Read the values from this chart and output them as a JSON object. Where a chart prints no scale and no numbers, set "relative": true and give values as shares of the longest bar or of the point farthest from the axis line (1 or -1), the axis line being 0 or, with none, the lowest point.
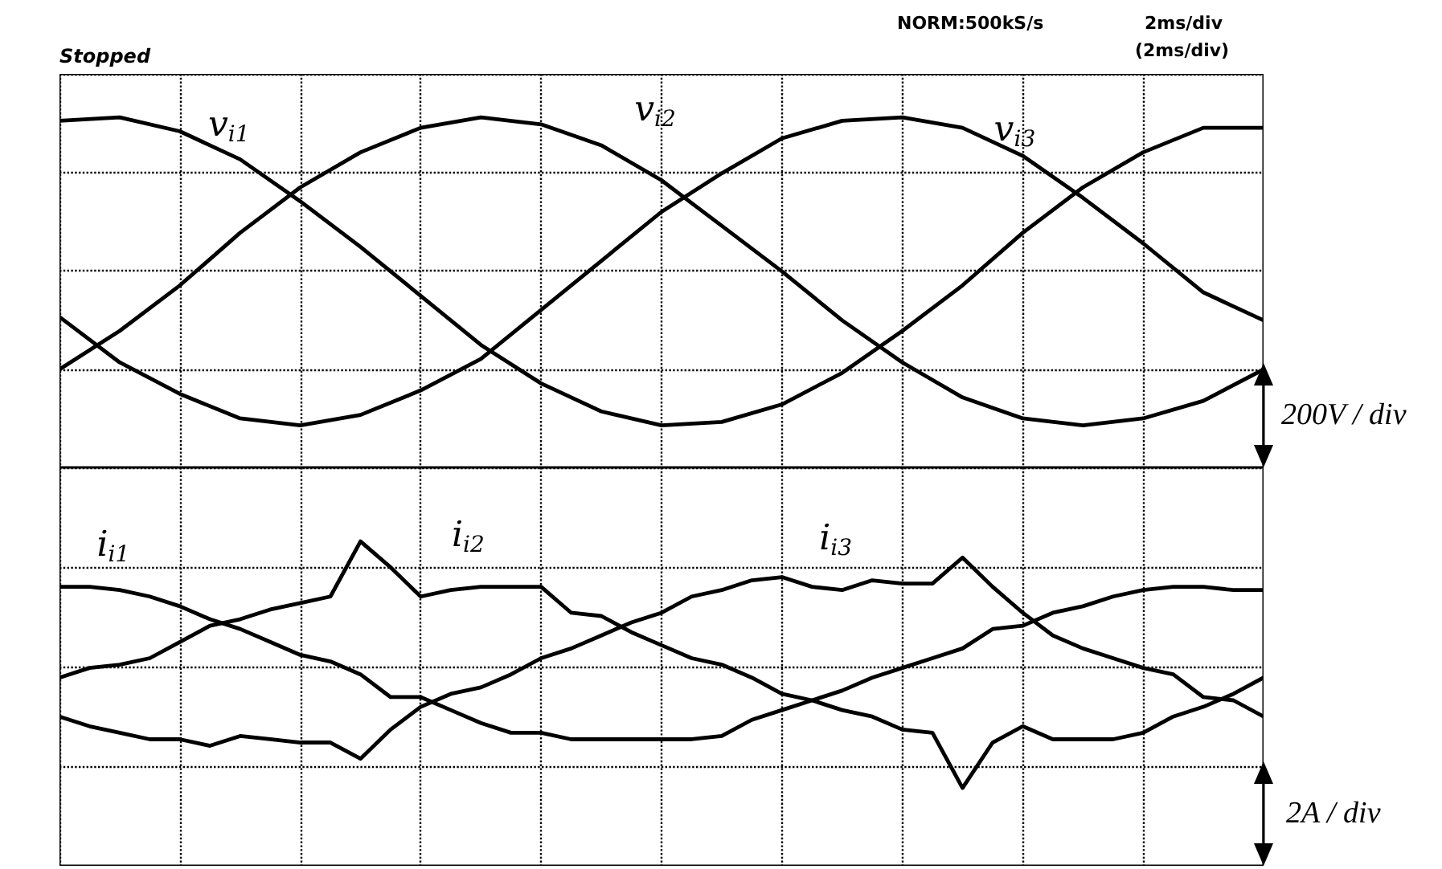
{
  "chart_data": [
    {
      "type": "line",
      "relative": true,
      "grid": true,
      "categories": [
        null,
        null,
        null,
        null,
        null,
        null,
        null,
        null,
        null,
        null,
        null,
        null,
        null,
        null,
        null,
        null,
        null,
        null,
        null,
        null,
        null
      ],
      "series": [
        {
          "name": "v$_{i1}$",
          "color": "#000000",
          "values": [
            0.99,
            1.0,
            0.96,
            0.88,
            0.76,
            0.63,
            0.49,
            0.35,
            0.24,
            0.16,
            0.12,
            0.13,
            0.18,
            0.27,
            0.39,
            0.52,
            0.67,
            0.8,
            0.9,
            0.97,
            0.97
          ]
        },
        {
          "name": "v$_{i2}$",
          "color": "#000000",
          "values": [
            0.28,
            0.39,
            0.52,
            0.67,
            0.8,
            0.9,
            0.97,
            1.0,
            0.98,
            0.92,
            0.82,
            0.69,
            0.56,
            0.42,
            0.3,
            0.2,
            0.14,
            0.12,
            0.14,
            0.19,
            0.28
          ]
        },
        {
          "name": "v$_{i3}$",
          "color": "#000000",
          "values": [
            0.43,
            0.3,
            0.21,
            0.14,
            0.12,
            0.15,
            0.22,
            0.31,
            0.45,
            0.59,
            0.73,
            0.84,
            0.94,
            0.99,
            1.0,
            0.97,
            0.89,
            0.77,
            0.64,
            0.5,
            0.42
          ]
        }
      ],
      "annotations": [
        "Stopped",
        "NORM:500kS/s",
        "2ms/div",
        "(2ms/div)",
        "200V / div"
      ]
    },
    {
      "type": "line",
      "relative": true,
      "grid": true,
      "categories": [
        null,
        null,
        null,
        null,
        null,
        null,
        null,
        null,
        null,
        null,
        null,
        null,
        null,
        null,
        null,
        null,
        null,
        null,
        null,
        null,
        null,
        null,
        null,
        null,
        null,
        null,
        null,
        null,
        null,
        null,
        null,
        null,
        null,
        null,
        null,
        null,
        null,
        null,
        null,
        null,
        null
      ],
      "series": [
        {
          "name": "i$_{i1}$",
          "color": "#000000",
          "values": [
            0.86,
            0.86,
            0.85,
            0.83,
            0.8,
            0.76,
            0.73,
            0.69,
            0.65,
            0.63,
            0.59,
            0.52,
            0.52,
            0.48,
            0.44,
            0.41,
            0.41,
            0.39,
            0.39,
            0.39,
            0.39,
            0.39,
            0.4,
            0.45,
            0.48,
            0.51,
            0.54,
            0.58,
            0.61,
            0.64,
            0.67,
            0.73,
            0.74,
            0.78,
            0.8,
            0.83,
            0.85,
            0.86,
            0.86,
            0.85,
            0.85
          ]
        },
        {
          "name": "i$_{i2}$",
          "color": "#000000",
          "values": [
            0.58,
            0.61,
            0.62,
            0.64,
            0.69,
            0.74,
            0.76,
            0.79,
            0.81,
            0.83,
            1.0,
            0.92,
            0.83,
            0.85,
            0.86,
            0.86,
            0.86,
            0.78,
            0.77,
            0.72,
            0.68,
            0.64,
            0.62,
            0.58,
            0.53,
            0.51,
            0.48,
            0.46,
            0.42,
            0.41,
            0.24,
            0.38,
            0.43,
            0.39,
            0.39,
            0.39,
            0.41,
            0.46,
            0.49,
            0.53,
            0.58
          ]
        },
        {
          "name": "i$_{i3}$",
          "color": "#000000",
          "values": [
            0.46,
            0.43,
            0.41,
            0.39,
            0.39,
            0.37,
            0.4,
            0.39,
            0.38,
            0.38,
            0.33,
            0.42,
            0.49,
            0.53,
            0.55,
            0.59,
            0.64,
            0.67,
            0.71,
            0.75,
            0.78,
            0.83,
            0.85,
            0.88,
            0.89,
            0.86,
            0.85,
            0.88,
            0.87,
            0.87,
            0.95,
            0.86,
            0.78,
            0.71,
            0.67,
            0.64,
            0.61,
            0.59,
            0.52,
            0.51,
            0.46
          ]
        }
      ],
      "annotations": [
        "2A / div"
      ]
    }
  ]
}
